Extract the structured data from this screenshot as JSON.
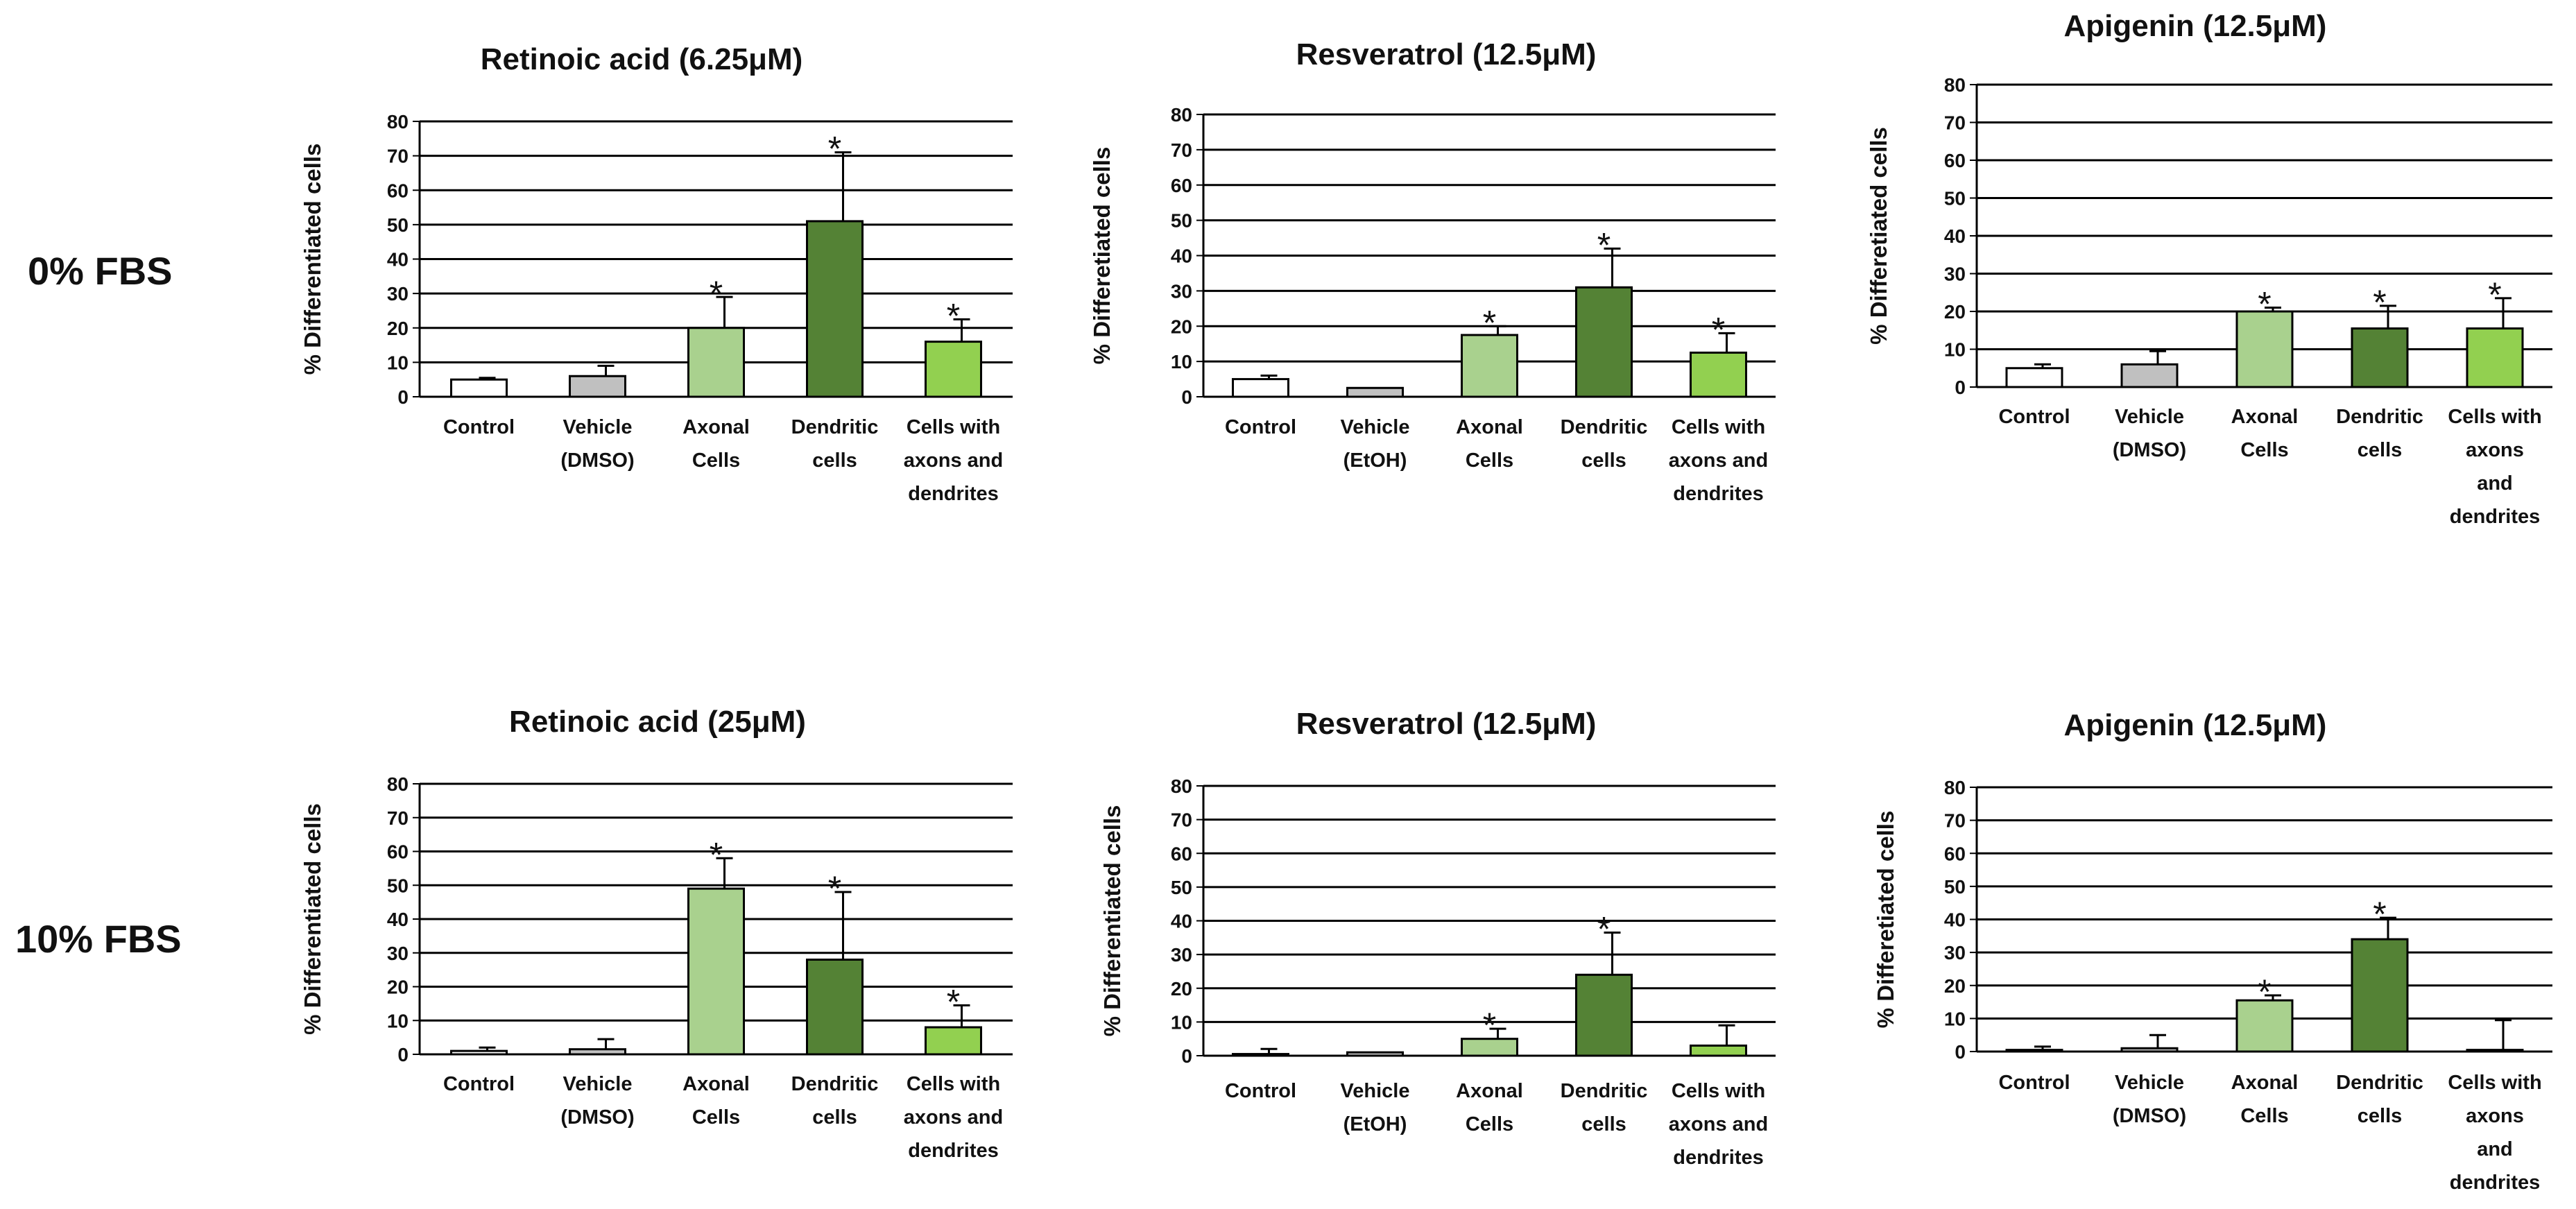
{
  "colors": {
    "control": "#ffffff",
    "vehicle": "#c0c0c0",
    "axonal": "#a9d18e",
    "dendritic": "#548235",
    "both": "#92d050",
    "outline": "#000000"
  },
  "row_labels": [
    "0% FBS",
    "10% FBS"
  ],
  "chart_data": [
    {
      "type": "bar",
      "row": "0% FBS",
      "title": "Retinoic acid (6.25μM)",
      "ylabel": "% Differentiated cells",
      "xlabel": "",
      "ylim": [
        0,
        80
      ],
      "yticks": [
        "0",
        "10",
        "20",
        "30",
        "40",
        "50",
        "60",
        "70",
        "80"
      ],
      "grid": true,
      "categories": [
        "Control",
        "Vehicle (DMSO)",
        "Axonal Cells",
        "Dendritic cells",
        "Cells with axons and dendrites"
      ],
      "category_lines": [
        [
          "Control"
        ],
        [
          "Vehicle",
          "(DMSO)"
        ],
        [
          "Axonal",
          "Cells"
        ],
        [
          "Dendritic",
          "cells"
        ],
        [
          "Cells with",
          "axons and",
          "dendrites"
        ]
      ],
      "values": [
        5,
        6,
        20,
        51,
        16
      ],
      "errors": [
        0.5,
        3,
        9,
        20,
        6.5
      ],
      "significance": [
        "",
        "",
        "*",
        "*",
        "*"
      ]
    },
    {
      "type": "bar",
      "row": "0% FBS",
      "title": "Resveratrol (12.5μM)",
      "ylabel": "% Differetiated cells",
      "xlabel": "",
      "ylim": [
        0,
        80
      ],
      "yticks": [
        "0",
        "10",
        "20",
        "30",
        "40",
        "50",
        "60",
        "70",
        "80"
      ],
      "grid": true,
      "categories": [
        "Control",
        "Vehicle (EtOH)",
        "Axonal Cells",
        "Dendritic cells",
        "Cells with axons and dendrites"
      ],
      "category_lines": [
        [
          "Control"
        ],
        [
          "Vehicle",
          "(EtOH)"
        ],
        [
          "Axonal",
          "Cells"
        ],
        [
          "Dendritic",
          "cells"
        ],
        [
          "Cells with",
          "axons and",
          "dendrites"
        ]
      ],
      "values": [
        5,
        2.5,
        17.5,
        31,
        12.5
      ],
      "errors": [
        1,
        0,
        2.5,
        11,
        5.5
      ],
      "significance": [
        "",
        "",
        "*",
        "*",
        "*"
      ]
    },
    {
      "type": "bar",
      "row": "0% FBS",
      "title": "Apigenin (12.5μM)",
      "ylabel": "% Differetiated cells",
      "xlabel": "",
      "ylim": [
        0,
        80
      ],
      "yticks": [
        "0",
        "10",
        "20",
        "30",
        "40",
        "50",
        "60",
        "70",
        "80"
      ],
      "grid": true,
      "categories": [
        "Control",
        "Vehicle (DMSO)",
        "Axonal Cells",
        "Dendritic cells",
        "Cells with axons and dendrites"
      ],
      "category_lines": [
        [
          "Control"
        ],
        [
          "Vehicle",
          "(DMSO)"
        ],
        [
          "Axonal",
          "Cells"
        ],
        [
          "Dendritic",
          "cells"
        ],
        [
          "Cells with",
          "axons",
          "and",
          "dendrites"
        ]
      ],
      "values": [
        5,
        6,
        20,
        15.5,
        15.5
      ],
      "errors": [
        1,
        3.5,
        1,
        6,
        8
      ],
      "significance": [
        "",
        "",
        "*",
        "*",
        "*"
      ]
    },
    {
      "type": "bar",
      "row": "10% FBS",
      "title": "Retinoic acid (25μM)",
      "ylabel": "% Differentiated cells",
      "xlabel": "",
      "ylim": [
        0,
        80
      ],
      "yticks": [
        "0",
        "10",
        "20",
        "30",
        "40",
        "50",
        "60",
        "70",
        "80"
      ],
      "grid": true,
      "categories": [
        "Control",
        "Vehicle (DMSO)",
        "Axonal Cells",
        "Dendritic cells",
        "Cells with axons and dendrites"
      ],
      "category_lines": [
        [
          "Control"
        ],
        [
          "Vehicle",
          "(DMSO)"
        ],
        [
          "Axonal",
          "Cells"
        ],
        [
          "Dendritic",
          "cells"
        ],
        [
          "Cells with",
          "axons and",
          "dendrites"
        ]
      ],
      "values": [
        1,
        1.5,
        49,
        28,
        8
      ],
      "errors": [
        1,
        3,
        9,
        20,
        6.5
      ],
      "significance": [
        "",
        "",
        "*",
        "*",
        "*"
      ]
    },
    {
      "type": "bar",
      "row": "10% FBS",
      "title": "Resveratrol (12.5μM)",
      "ylabel": "% Differentiated cells",
      "xlabel": "",
      "ylim": [
        0,
        80
      ],
      "yticks": [
        "0",
        "10",
        "20",
        "30",
        "40",
        "50",
        "60",
        "70",
        "80"
      ],
      "grid": true,
      "categories": [
        "Control",
        "Vehicle (EtOH)",
        "Axonal Cells",
        "Dendritic cells",
        "Cells with axons and dendrites"
      ],
      "category_lines": [
        [
          "Control"
        ],
        [
          "Vehicle",
          "(EtOH)"
        ],
        [
          "Axonal",
          "Cells"
        ],
        [
          "Dendritic",
          "cells"
        ],
        [
          "Cells with",
          "axons and",
          "dendrites"
        ]
      ],
      "values": [
        0.5,
        1,
        5,
        24,
        3
      ],
      "errors": [
        1.5,
        0,
        3,
        12.5,
        6
      ],
      "significance": [
        "",
        "",
        "*",
        "*",
        ""
      ]
    },
    {
      "type": "bar",
      "row": "10% FBS",
      "title": "Apigenin (12.5μM)",
      "ylabel": "% Differetiated cells",
      "xlabel": "",
      "ylim": [
        0,
        80
      ],
      "yticks": [
        "0",
        "10",
        "20",
        "30",
        "40",
        "50",
        "60",
        "70",
        "80"
      ],
      "grid": true,
      "categories": [
        "Control",
        "Vehicle (DMSO)",
        "Axonal Cells",
        "Dendritic cells",
        "Cells with axons and dendrites"
      ],
      "category_lines": [
        [
          "Control"
        ],
        [
          "Vehicle",
          "(DMSO)"
        ],
        [
          "Axonal",
          "Cells"
        ],
        [
          "Dendritic",
          "cells"
        ],
        [
          "Cells with",
          "axons",
          "and",
          "dendrites"
        ]
      ],
      "values": [
        0.5,
        1,
        15.5,
        34,
        0.5
      ],
      "errors": [
        1,
        4,
        1.5,
        6.5,
        9
      ],
      "significance": [
        "",
        "",
        "*",
        "*",
        ""
      ]
    }
  ]
}
